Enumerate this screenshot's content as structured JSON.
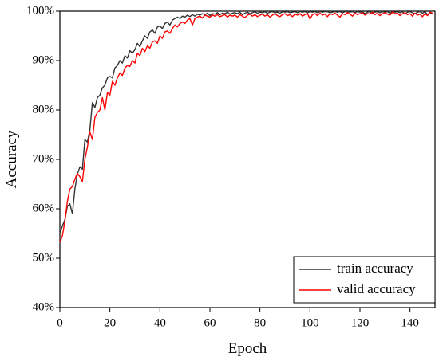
{
  "chart_data": {
    "type": "line",
    "xlabel": "Epoch",
    "ylabel": "Accuracy",
    "x": [
      0,
      1,
      2,
      3,
      4,
      5,
      6,
      7,
      8,
      9,
      10,
      11,
      12,
      13,
      14,
      15,
      16,
      17,
      18,
      19,
      20,
      21,
      22,
      23,
      24,
      25,
      26,
      27,
      28,
      29,
      30,
      31,
      32,
      33,
      34,
      35,
      36,
      37,
      38,
      39,
      40,
      41,
      42,
      43,
      44,
      45,
      46,
      47,
      48,
      49,
      50,
      51,
      52,
      53,
      54,
      55,
      56,
      57,
      58,
      59,
      60,
      61,
      62,
      63,
      64,
      65,
      66,
      67,
      68,
      69,
      70,
      71,
      72,
      73,
      74,
      75,
      76,
      77,
      78,
      79,
      80,
      81,
      82,
      83,
      84,
      85,
      86,
      87,
      88,
      89,
      90,
      91,
      92,
      93,
      94,
      95,
      96,
      97,
      98,
      99,
      100,
      101,
      102,
      103,
      104,
      105,
      106,
      107,
      108,
      109,
      110,
      111,
      112,
      113,
      114,
      115,
      116,
      117,
      118,
      119,
      120,
      121,
      122,
      123,
      124,
      125,
      126,
      127,
      128,
      129,
      130,
      131,
      132,
      133,
      134,
      135,
      136,
      137,
      138,
      139,
      140,
      141,
      142,
      143,
      144,
      145,
      146,
      147,
      148,
      149
    ],
    "series": [
      {
        "name": "train accuracy",
        "color": "#333333",
        "values": [
          55,
          56.5,
          57.8,
          60.5,
          61,
          59,
          64,
          67,
          68.5,
          68,
          74,
          73.5,
          76,
          81.5,
          80.5,
          82.5,
          83,
          84.5,
          85,
          86.5,
          86.8,
          86.5,
          88.5,
          89,
          90,
          89.5,
          91,
          90.5,
          92,
          91.5,
          92.2,
          93.5,
          92.8,
          94,
          95,
          94.5,
          95.8,
          96.2,
          95.5,
          96.8,
          97,
          96.5,
          97.5,
          97.8,
          97.2,
          98.2,
          98.5,
          98.8,
          98.5,
          99,
          98.8,
          99.2,
          98.9,
          99.3,
          99,
          99.4,
          99.2,
          99.5,
          99.3,
          99.6,
          99.1,
          99.5,
          99.4,
          99.7,
          99.3,
          99.6,
          99.5,
          99.8,
          99.4,
          99.6,
          99.7,
          99.5,
          99.8,
          99.3,
          99.6,
          99.8,
          99.5,
          99.7,
          99.9,
          99.6,
          99.8,
          99.7,
          99.9,
          99.6,
          99.8,
          99.9,
          99.7,
          99.8,
          99.6,
          99.9,
          99.8,
          99.9,
          99.7,
          99.8,
          99.9,
          99.7,
          99.9,
          99.8,
          99.9,
          99.7,
          99.9,
          99.8,
          99.9,
          99.7,
          99.9,
          99.8,
          99.9,
          99.9,
          99.7,
          99.8,
          99.9,
          99.8,
          99.9,
          99.7,
          99.9,
          99.9,
          99.8,
          99.9,
          99.7,
          99.9,
          99.8,
          99.9,
          99.5,
          99.8,
          99.9,
          99.6,
          99.8,
          99.9,
          99.7,
          99.9,
          99.8,
          99.9,
          99.6,
          99.9,
          99.8,
          99.9,
          99.7,
          99.9,
          99.4,
          99.8,
          99.9,
          99.7,
          99.5,
          99.8,
          99.9,
          99.6,
          99.9,
          99.3,
          99.7,
          99.5
        ]
      },
      {
        "name": "valid accuracy",
        "color": "#ff0000",
        "values": [
          53.2,
          54.5,
          57.5,
          61.5,
          64,
          64.5,
          66,
          67.2,
          66.5,
          65.5,
          70,
          72.5,
          75.5,
          74,
          78.5,
          79.5,
          80,
          82.5,
          80,
          83.5,
          83,
          85.8,
          85,
          86.5,
          87.5,
          87,
          88.5,
          89,
          88.8,
          90,
          89.5,
          91.5,
          91,
          92.5,
          91.8,
          93,
          92.5,
          93.8,
          94,
          93.5,
          95,
          94.5,
          95.8,
          96,
          95.5,
          96.5,
          97.2,
          96.8,
          97.5,
          97.8,
          97.5,
          98.2,
          98.5,
          97.2,
          98.5,
          98.8,
          99,
          98.6,
          99.2,
          99,
          98.8,
          99.2,
          99,
          99.3,
          98.9,
          99.1,
          99.3,
          98.8,
          99.2,
          99,
          99.2,
          98.8,
          99.3,
          99,
          98.7,
          99.2,
          99.4,
          99,
          99.3,
          98.9,
          99.2,
          99.4,
          99,
          99.3,
          98.8,
          99.2,
          99.5,
          99.1,
          98.9,
          99.3,
          99.5,
          99.1,
          99.3,
          98.9,
          99.4,
          99.2,
          99.5,
          99,
          99.3,
          99.6,
          98.4,
          99.3,
          99.5,
          99.1,
          99.6,
          99.2,
          99.4,
          98.9,
          99.5,
          99.3,
          99.6,
          99.2,
          98.8,
          99.5,
          99.3,
          99.7,
          99.4,
          99,
          99.6,
          99.3,
          99.5,
          99.7,
          99.2,
          99.5,
          99.4,
          99.8,
          99.3,
          99.6,
          99.1,
          99.5,
          99.7,
          99.4,
          99.2,
          99.8,
          99.5,
          99.6,
          99.1,
          99.5,
          99.7,
          99.3,
          99.5,
          99,
          99.6,
          99.2,
          99.4,
          98.9,
          99.5,
          99.1,
          99.8,
          99.6
        ]
      }
    ],
    "xlim": [
      0,
      150
    ],
    "ylim": [
      40,
      100
    ],
    "xticks": [
      0,
      20,
      40,
      60,
      80,
      100,
      120,
      140
    ],
    "yticks": [
      {
        "value": 40,
        "label": "40%"
      },
      {
        "value": 50,
        "label": "50%"
      },
      {
        "value": 60,
        "label": "60%"
      },
      {
        "value": 70,
        "label": "70%"
      },
      {
        "value": 80,
        "label": "80%"
      },
      {
        "value": 90,
        "label": "90%"
      },
      {
        "value": 100,
        "label": "100%"
      }
    ],
    "legend": "lower right",
    "grid": false
  }
}
